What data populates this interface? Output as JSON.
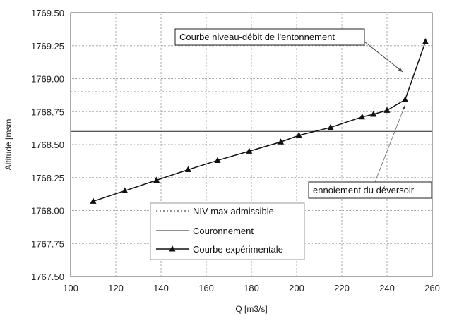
{
  "chart_data": {
    "type": "line",
    "xlabel": "Q [m3/s]",
    "ylabel": "Altitude [msm",
    "xlim": [
      100,
      260
    ],
    "ylim": [
      1767.5,
      1769.5
    ],
    "x_ticks": [
      "100",
      "120",
      "140",
      "160",
      "180",
      "200",
      "220",
      "240",
      "260"
    ],
    "y_ticks": [
      "1767.50",
      "1767.75",
      "1768.00",
      "1768.25",
      "1768.50",
      "1768.75",
      "1769.00",
      "1769.25",
      "1769.50"
    ],
    "grid": true,
    "legend_placement": "bottom-center",
    "series": [
      {
        "name": "NIV max admissible",
        "style": "dotted",
        "x": [
          100,
          260
        ],
        "y": [
          1768.9,
          1768.9
        ]
      },
      {
        "name": "Couronnement",
        "style": "solid",
        "x": [
          100,
          260
        ],
        "y": [
          1768.6,
          1768.6
        ]
      },
      {
        "name": "Courbe expérimentale",
        "style": "solid-triangle-markers",
        "x": [
          110,
          124,
          138,
          152,
          165,
          179,
          193,
          201,
          215,
          229,
          234,
          240,
          248,
          257
        ],
        "y": [
          1768.07,
          1768.15,
          1768.23,
          1768.31,
          1768.38,
          1768.45,
          1768.52,
          1768.57,
          1768.63,
          1768.71,
          1768.73,
          1768.76,
          1768.84,
          1769.28
        ]
      }
    ],
    "annotations": [
      {
        "text": "Courbe niveau-débit de l'entonnement",
        "target": [
          247,
          1769.05
        ]
      },
      {
        "text": "ennoiement du déversoir",
        "target": [
          248,
          1768.8
        ]
      }
    ]
  }
}
